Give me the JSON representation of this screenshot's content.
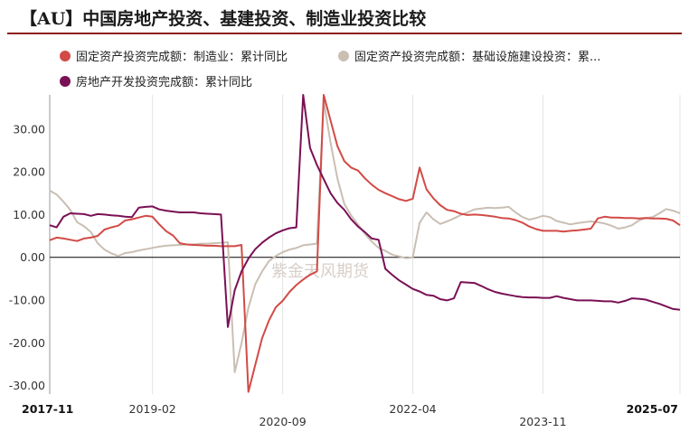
{
  "title": "【AU】中国房地产投资、基建投资、制造业投资比较",
  "watermark": "紫金天风期货",
  "colors": {
    "title_rule": "#8b1a1a",
    "zero_line": "#222222"
  },
  "legend": [
    {
      "label": "固定资产投资完成额：制造业：累计同比",
      "color": "#d24a46"
    },
    {
      "label": "固定资产投资完成额：基础设施建设投资：累...",
      "color": "#c9bfb3"
    },
    {
      "label": "房地产开发投资完成额：累计同比",
      "color": "#7a1055"
    }
  ],
  "chart_data": {
    "type": "line",
    "ylim": [
      -32,
      38
    ],
    "y_ticks": [
      "30.00",
      "20.00",
      "10.00",
      "0.00",
      "-10.00",
      "-20.00",
      "-30.00"
    ],
    "y_tick_values": [
      30,
      20,
      10,
      0,
      -10,
      -20,
      -30
    ],
    "x_tick_labels": [
      {
        "label": "2017-11",
        "row": 1,
        "bold": true
      },
      {
        "label": "2019-02",
        "row": 1,
        "bold": false
      },
      {
        "label": "2020-09",
        "row": 2,
        "bold": false
      },
      {
        "label": "2022-04",
        "row": 1,
        "bold": false
      },
      {
        "label": "2023-11",
        "row": 2,
        "bold": false
      },
      {
        "label": "2025-07",
        "row": 1,
        "bold": true
      }
    ],
    "x_tick_index": [
      0,
      15,
      34,
      53,
      72,
      92
    ],
    "n_points": 93,
    "grid": "vertical",
    "legend_position": "top",
    "series": [
      {
        "name": "固定资产投资完成额：制造业：累计同比",
        "color": "#d24a46",
        "x_index_start": 0,
        "values": [
          4,
          4.6,
          4.4,
          4.1,
          3.8,
          4.4,
          4.6,
          5,
          6.5,
          7,
          7.4,
          8.6,
          8.9,
          9.3,
          9.7,
          9.5,
          7.7,
          6.1,
          5.1,
          3.3,
          3,
          2.9,
          2.8,
          2.7,
          2.7,
          2.6,
          2.6,
          2.6,
          2.9,
          -31.5,
          -25.2,
          -18.9,
          -14.8,
          -11.7,
          -10.2,
          -8.1,
          -6.5,
          -5.2,
          -4.1,
          -3.3,
          38,
          32,
          26,
          22.5,
          21,
          20.3,
          18.5,
          17,
          15.8,
          15,
          14.3,
          13.6,
          13.2,
          13.7,
          21,
          15.9,
          13.8,
          12.2,
          11.1,
          10.8,
          10.2,
          9.9,
          10,
          9.9,
          9.7,
          9.5,
          9.2,
          9.1,
          8.7,
          8.1,
          7.2,
          6.6,
          6.2,
          6.2,
          6.2,
          6,
          6.2,
          6.3,
          6.5,
          6.7,
          9.1,
          9.5,
          9.3,
          9.3,
          9.2,
          9.2,
          9.1,
          9.2,
          9.1,
          9.1,
          9,
          8.6,
          7.5
        ]
      },
      {
        "name": "固定资产投资完成额：基础设施建设投资：累...",
        "color": "#c9bfb3",
        "x_index_start": 0,
        "values": [
          15.6,
          14.7,
          13,
          11.1,
          8.2,
          7.3,
          5.9,
          3.3,
          1.8,
          0.9,
          0.3,
          1,
          1.2,
          1.6,
          1.9,
          2.2,
          2.5,
          2.7,
          2.8,
          2.9,
          3,
          3,
          3.2,
          3.2,
          3.3,
          3.4,
          3.5,
          -26.9,
          -20.1,
          -11.8,
          -6.3,
          -3.3,
          -0.9,
          0.3,
          1.2,
          1.8,
          2.2,
          2.8,
          3,
          3.2,
          36.6,
          26.8,
          18.4,
          12.5,
          9.8,
          7.7,
          5.5,
          3.7,
          2.2,
          1.5,
          0.6,
          0.2,
          -0.2,
          0,
          8.1,
          10.5,
          8.9,
          7.8,
          8.4,
          9.1,
          9.9,
          10.5,
          11.2,
          11.4,
          11.6,
          11.5,
          11.6,
          11.8,
          10.5,
          9.4,
          8.8,
          9.2,
          9.7,
          9.4,
          8.5,
          8.1,
          7.7,
          8,
          8.2,
          8.4,
          8.2,
          7.9,
          7.4,
          6.7,
          7,
          7.5,
          8.6,
          9.2,
          9.4,
          10.3,
          11.3,
          10.9,
          10.3
        ]
      },
      {
        "name": "房地产开发投资完成额：累计同比",
        "color": "#7a1055",
        "x_index_start": 0,
        "values": [
          7.5,
          7,
          9.5,
          10.3,
          10.2,
          10.1,
          9.7,
          10.1,
          10,
          9.8,
          9.7,
          9.5,
          9.4,
          11.6,
          11.8,
          11.9,
          11.2,
          10.9,
          10.7,
          10.5,
          10.5,
          10.5,
          10.3,
          10.2,
          10.1,
          10,
          -16.3,
          -7.7,
          -3.3,
          -0.3,
          1.9,
          3.4,
          4.6,
          5.6,
          6.3,
          6.8,
          7,
          38,
          25.6,
          21.6,
          18.3,
          15,
          12.7,
          11.1,
          8.9,
          7.2,
          5.9,
          4.4,
          4.1,
          -2.7,
          -4.1,
          -5.4,
          -6.4,
          -7.4,
          -8,
          -8.8,
          -9,
          -9.8,
          -10.1,
          -9.6,
          -5.8,
          -5.9,
          -6,
          -6.7,
          -7.5,
          -8.1,
          -8.5,
          -8.8,
          -9.1,
          -9.3,
          -9.4,
          -9.4,
          -9.5,
          -9.5,
          -9.1,
          -9.5,
          -9.8,
          -10.1,
          -10.1,
          -10.1,
          -10.2,
          -10.3,
          -10.3,
          -10.6,
          -10.2,
          -9.6,
          -9.7,
          -9.9,
          -10.4,
          -10.9,
          -11.5,
          -12.1,
          -12.3
        ]
      }
    ]
  }
}
